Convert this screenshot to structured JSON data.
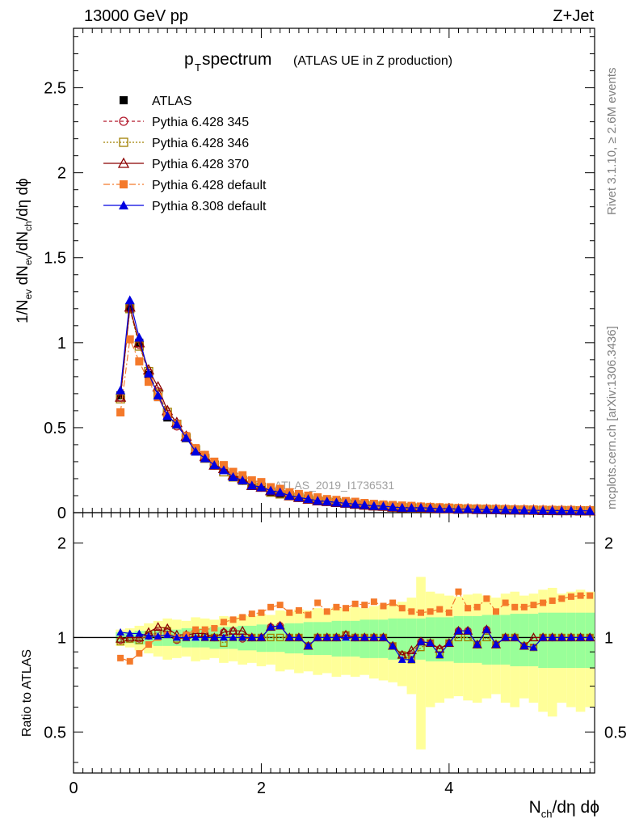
{
  "header": {
    "energy_label": "13000 GeV pp",
    "process_label": "Z+Jet"
  },
  "plot_title": {
    "main": "p",
    "sub": "T",
    "rest": " spectrum",
    "small": "(ATLAS UE in Z production)"
  },
  "analysis_id": "ATLAS_2019_I1736531",
  "side_text": {
    "rivet": "Rivet 3.1.10, ≥ 2.6M events",
    "mcplots": "mcplots.cern.ch [arXiv:1306.3436]"
  },
  "axes": {
    "y_label_top": "1/N_ev dN_ev/dN_ch/dη dϕ",
    "y_label_ratio": "Ratio to ATLAS",
    "x_label": "N_ch/dη dϕ",
    "top_y_ticks": [
      "0",
      "0.5",
      "1",
      "1.5",
      "2",
      "2.5"
    ],
    "ratio_y_ticks": [
      "0.5",
      "1",
      "2"
    ],
    "x_ticks": [
      "0",
      "2",
      "4"
    ]
  },
  "legend": [
    {
      "label": "ATLAS",
      "color": "#000000",
      "marker": "square-filled"
    },
    {
      "label": "Pythia 6.428 345",
      "color": "#b2182b",
      "marker": "circle-open"
    },
    {
      "label": "Pythia 6.428 346",
      "color": "#a08000",
      "marker": "square-open"
    },
    {
      "label": "Pythia 6.428 370",
      "color": "#8b0000",
      "marker": "triangle-open"
    },
    {
      "label": "Pythia 6.428 default",
      "color": "#f4792a",
      "marker": "square-filled"
    },
    {
      "label": "Pythia 8.308 default",
      "color": "#0000e0",
      "marker": "triangle-filled"
    }
  ],
  "chart_data": [
    {
      "type": "line",
      "title": "pT spectrum (ATLAS UE in Z production)",
      "xlabel": "N_ch/dη dϕ",
      "ylabel": "1/N_ev dN_ev/dN_ch/dη dϕ",
      "xlim": [
        0,
        5.55
      ],
      "ylim": [
        0,
        2.85
      ],
      "x": [
        0.5,
        0.6,
        0.7,
        0.8,
        0.9,
        1.0,
        1.1,
        1.2,
        1.3,
        1.4,
        1.5,
        1.6,
        1.7,
        1.8,
        1.9,
        2.0,
        2.1,
        2.2,
        2.3,
        2.4,
        2.5,
        2.6,
        2.7,
        2.8,
        2.9,
        3.0,
        3.1,
        3.2,
        3.3,
        3.4,
        3.5,
        3.6,
        3.7,
        3.8,
        3.9,
        4.0,
        4.1,
        4.2,
        4.3,
        4.4,
        4.5,
        4.6,
        4.7,
        4.8,
        4.9,
        5.0,
        5.1,
        5.2,
        5.3,
        5.4,
        5.5
      ],
      "series": [
        {
          "name": "ATLAS",
          "values": [
            0.69,
            1.21,
            1.0,
            0.81,
            0.68,
            0.56,
            0.52,
            0.44,
            0.36,
            0.32,
            0.28,
            0.25,
            0.21,
            0.19,
            0.16,
            0.15,
            0.12,
            0.11,
            0.1,
            0.09,
            0.085,
            0.07,
            0.066,
            0.06,
            0.055,
            0.05,
            0.045,
            0.04,
            0.038,
            0.035,
            0.034,
            0.033,
            0.03,
            0.028,
            0.026,
            0.025,
            0.02,
            0.021,
            0.02,
            0.018,
            0.019,
            0.017,
            0.016,
            0.016,
            0.015,
            0.014,
            0.013,
            0.012,
            0.012,
            0.011,
            0.011
          ]
        },
        {
          "name": "Pythia 6.428 345",
          "values": [
            0.68,
            1.2,
            0.99,
            0.82,
            0.71,
            0.58,
            0.51,
            0.45,
            0.37,
            0.33,
            0.28,
            0.26,
            0.22,
            0.19,
            0.16,
            0.15,
            0.13,
            0.12,
            0.1,
            0.09,
            0.08,
            0.07,
            0.066,
            0.06,
            0.056,
            0.05,
            0.045,
            0.04,
            0.038,
            0.033,
            0.03,
            0.029,
            0.029,
            0.027,
            0.024,
            0.024,
            0.021,
            0.022,
            0.019,
            0.019,
            0.018,
            0.017,
            0.016,
            0.015,
            0.014,
            0.013,
            0.013,
            0.012,
            0.012,
            0.011,
            0.011
          ]
        },
        {
          "name": "Pythia 6.428 346",
          "values": [
            0.67,
            1.2,
            0.98,
            0.83,
            0.7,
            0.59,
            0.52,
            0.44,
            0.37,
            0.32,
            0.28,
            0.24,
            0.21,
            0.19,
            0.16,
            0.15,
            0.12,
            0.11,
            0.1,
            0.09,
            0.08,
            0.07,
            0.066,
            0.06,
            0.056,
            0.05,
            0.045,
            0.04,
            0.038,
            0.033,
            0.03,
            0.028,
            0.028,
            0.027,
            0.023,
            0.024,
            0.02,
            0.021,
            0.019,
            0.018,
            0.018,
            0.016,
            0.016,
            0.015,
            0.014,
            0.013,
            0.012,
            0.012,
            0.012,
            0.011,
            0.011
          ]
        },
        {
          "name": "Pythia 6.428 370",
          "values": [
            0.68,
            1.21,
            1.0,
            0.84,
            0.74,
            0.6,
            0.53,
            0.45,
            0.37,
            0.33,
            0.28,
            0.26,
            0.22,
            0.2,
            0.16,
            0.15,
            0.13,
            0.12,
            0.1,
            0.09,
            0.08,
            0.07,
            0.066,
            0.06,
            0.056,
            0.05,
            0.045,
            0.04,
            0.038,
            0.033,
            0.03,
            0.03,
            0.029,
            0.027,
            0.024,
            0.024,
            0.021,
            0.022,
            0.019,
            0.019,
            0.018,
            0.017,
            0.016,
            0.015,
            0.015,
            0.013,
            0.013,
            0.012,
            0.012,
            0.011,
            0.011
          ]
        },
        {
          "name": "Pythia 6.428 default",
          "values": [
            0.59,
            1.02,
            0.89,
            0.77,
            0.68,
            0.57,
            0.52,
            0.45,
            0.38,
            0.34,
            0.3,
            0.28,
            0.24,
            0.22,
            0.19,
            0.18,
            0.15,
            0.14,
            0.12,
            0.11,
            0.1,
            0.09,
            0.08,
            0.075,
            0.068,
            0.064,
            0.057,
            0.052,
            0.048,
            0.045,
            0.042,
            0.04,
            0.036,
            0.034,
            0.032,
            0.03,
            0.028,
            0.026,
            0.025,
            0.024,
            0.023,
            0.022,
            0.02,
            0.02,
            0.019,
            0.018,
            0.017,
            0.016,
            0.016,
            0.015,
            0.015
          ]
        },
        {
          "name": "Pythia 8.308 default",
          "values": [
            0.72,
            1.25,
            1.03,
            0.82,
            0.69,
            0.57,
            0.52,
            0.44,
            0.36,
            0.32,
            0.28,
            0.25,
            0.21,
            0.19,
            0.16,
            0.15,
            0.13,
            0.12,
            0.1,
            0.09,
            0.08,
            0.07,
            0.066,
            0.06,
            0.055,
            0.05,
            0.045,
            0.04,
            0.038,
            0.033,
            0.029,
            0.028,
            0.029,
            0.027,
            0.023,
            0.024,
            0.02,
            0.022,
            0.019,
            0.018,
            0.018,
            0.017,
            0.016,
            0.015,
            0.014,
            0.013,
            0.013,
            0.012,
            0.012,
            0.011,
            0.011
          ]
        }
      ]
    },
    {
      "type": "line",
      "title": "Ratio to ATLAS",
      "xlabel": "N_ch/dη dϕ",
      "ylabel": "Ratio to ATLAS",
      "xlim": [
        0,
        5.55
      ],
      "ylim": [
        0.37,
        2.5
      ],
      "yscale": "log",
      "x": [
        0.5,
        0.6,
        0.7,
        0.8,
        0.9,
        1.0,
        1.1,
        1.2,
        1.3,
        1.4,
        1.5,
        1.6,
        1.7,
        1.8,
        1.9,
        2.0,
        2.1,
        2.2,
        2.3,
        2.4,
        2.5,
        2.6,
        2.7,
        2.8,
        2.9,
        3.0,
        3.1,
        3.2,
        3.3,
        3.4,
        3.5,
        3.6,
        3.7,
        3.8,
        3.9,
        4.0,
        4.1,
        4.2,
        4.3,
        4.4,
        4.5,
        4.6,
        4.7,
        4.8,
        4.9,
        5.0,
        5.1,
        5.2,
        5.3,
        5.4,
        5.5
      ],
      "uncertainty_band_inner": [
        0.04,
        0.04,
        0.05,
        0.05,
        0.06,
        0.06,
        0.06,
        0.07,
        0.07,
        0.07,
        0.08,
        0.08,
        0.08,
        0.09,
        0.09,
        0.1,
        0.1,
        0.1,
        0.11,
        0.11,
        0.12,
        0.12,
        0.12,
        0.13,
        0.13,
        0.13,
        0.14,
        0.14,
        0.14,
        0.15,
        0.15,
        0.15,
        0.15,
        0.16,
        0.16,
        0.16,
        0.17,
        0.17,
        0.17,
        0.18,
        0.18,
        0.18,
        0.19,
        0.19,
        0.19,
        0.2,
        0.2,
        0.2,
        0.2,
        0.2,
        0.2
      ],
      "uncertainty_band_outer": [
        0.06,
        0.07,
        0.09,
        0.11,
        0.13,
        0.15,
        0.14,
        0.13,
        0.16,
        0.15,
        0.14,
        0.17,
        0.16,
        0.18,
        0.17,
        0.19,
        0.18,
        0.22,
        0.21,
        0.23,
        0.22,
        0.24,
        0.23,
        0.25,
        0.24,
        0.25,
        0.24,
        0.26,
        0.27,
        0.28,
        0.3,
        0.34,
        0.56,
        0.4,
        0.38,
        0.36,
        0.35,
        0.37,
        0.38,
        0.36,
        0.34,
        0.38,
        0.4,
        0.36,
        0.38,
        0.42,
        0.44,
        0.38,
        0.4,
        0.42,
        0.4
      ],
      "series": [
        {
          "name": "Pythia 6.428 345",
          "values": [
            0.98,
            0.99,
            0.99,
            1.01,
            1.04,
            1.04,
            0.98,
            1.02,
            1.03,
            1.03,
            1.0,
            1.04,
            1.05,
            0.99,
            1.0,
            1.0,
            1.08,
            1.09,
            1.0,
            1.0,
            0.94,
            1.0,
            1.0,
            1.0,
            1.02,
            1.0,
            1.0,
            1.0,
            1.0,
            0.94,
            0.88,
            0.88,
            0.97,
            0.96,
            0.92,
            0.96,
            1.05,
            1.05,
            0.95,
            1.06,
            0.95,
            1.0,
            1.0,
            0.94,
            0.93,
            1.0,
            1.0,
            1.0,
            1.0,
            1.0,
            1.0
          ]
        },
        {
          "name": "Pythia 6.428 346",
          "values": [
            0.97,
            0.99,
            0.98,
            1.02,
            1.03,
            1.05,
            0.99,
            1.0,
            1.03,
            1.0,
            1.0,
            0.96,
            1.0,
            1.0,
            1.0,
            1.0,
            1.0,
            1.0,
            1.0,
            1.0,
            0.94,
            1.0,
            1.0,
            1.0,
            1.02,
            1.0,
            1.0,
            1.0,
            1.0,
            0.94,
            0.88,
            0.85,
            0.93,
            0.96,
            0.88,
            0.96,
            1.0,
            1.0,
            0.95,
            1.0,
            0.95,
            1.0,
            1.0,
            0.94,
            0.93,
            1.0,
            1.0,
            1.0,
            1.0,
            1.0,
            1.0
          ]
        },
        {
          "name": "Pythia 6.428 370",
          "values": [
            0.99,
            1.0,
            1.0,
            1.04,
            1.08,
            1.07,
            1.02,
            1.02,
            1.03,
            1.03,
            1.0,
            1.04,
            1.05,
            1.05,
            1.0,
            1.0,
            1.08,
            1.09,
            1.0,
            1.0,
            0.94,
            1.0,
            1.0,
            1.0,
            1.02,
            1.0,
            1.0,
            1.0,
            1.0,
            0.94,
            0.88,
            0.91,
            0.97,
            0.96,
            0.92,
            0.96,
            1.05,
            1.05,
            0.95,
            1.06,
            0.95,
            1.0,
            1.0,
            0.94,
            1.0,
            1.0,
            1.0,
            1.0,
            1.0,
            1.0,
            1.0
          ]
        },
        {
          "name": "Pythia 6.428 default",
          "values": [
            0.86,
            0.84,
            0.89,
            0.95,
            1.0,
            1.02,
            1.0,
            1.02,
            1.06,
            1.06,
            1.07,
            1.12,
            1.14,
            1.16,
            1.19,
            1.2,
            1.25,
            1.27,
            1.2,
            1.22,
            1.18,
            1.29,
            1.21,
            1.25,
            1.24,
            1.28,
            1.27,
            1.3,
            1.26,
            1.29,
            1.24,
            1.21,
            1.2,
            1.21,
            1.23,
            1.2,
            1.4,
            1.24,
            1.25,
            1.33,
            1.21,
            1.29,
            1.25,
            1.25,
            1.27,
            1.29,
            1.31,
            1.33,
            1.35,
            1.36,
            1.36
          ]
        },
        {
          "name": "Pythia 8.308 default",
          "values": [
            1.04,
            1.03,
            1.03,
            1.01,
            1.01,
            1.02,
            1.0,
            1.0,
            1.0,
            1.0,
            1.0,
            1.0,
            1.0,
            1.0,
            1.0,
            1.0,
            1.08,
            1.09,
            1.0,
            1.0,
            0.94,
            1.0,
            1.0,
            1.0,
            1.0,
            1.0,
            1.0,
            1.0,
            1.0,
            0.94,
            0.85,
            0.85,
            0.97,
            0.96,
            0.88,
            0.96,
            1.05,
            1.05,
            0.95,
            1.06,
            0.95,
            1.0,
            1.0,
            0.94,
            0.93,
            1.0,
            1.0,
            1.0,
            1.0,
            1.0,
            1.0
          ]
        }
      ]
    }
  ]
}
